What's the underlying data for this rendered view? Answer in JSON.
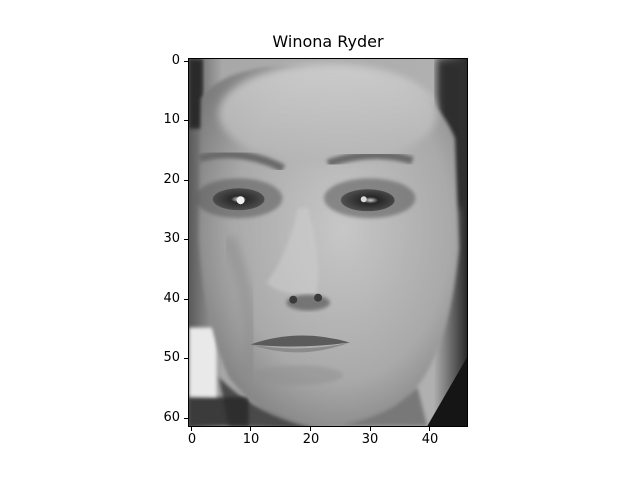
{
  "figure": {
    "title": "Winona Ryder"
  },
  "image_axes": {
    "x_tick_labels": [
      "0",
      "10",
      "20",
      "30",
      "40"
    ],
    "y_tick_labels": [
      "0",
      "10",
      "20",
      "30",
      "40",
      "50",
      "60"
    ],
    "x_ticks": [
      0,
      10,
      20,
      30,
      40
    ],
    "y_ticks": [
      0,
      10,
      20,
      30,
      40,
      50,
      60
    ],
    "x_range": [
      -0.5,
      46.5
    ],
    "y_range": [
      61.5,
      -0.5
    ],
    "colormap": "gray"
  }
}
